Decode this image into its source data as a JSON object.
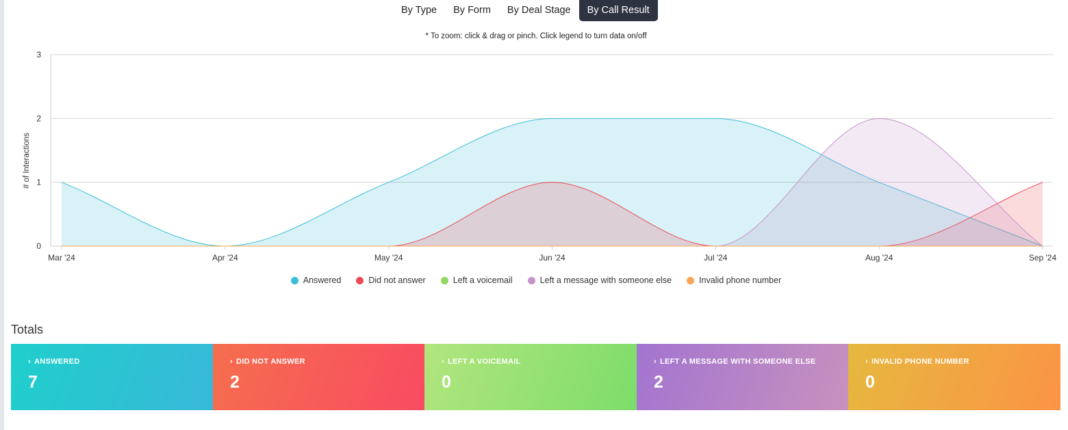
{
  "tabs": [
    {
      "label": "By Type",
      "active": false
    },
    {
      "label": "By Form",
      "active": false
    },
    {
      "label": "By Deal Stage",
      "active": false
    },
    {
      "label": "By Call Result",
      "active": true
    }
  ],
  "hint": "* To zoom: click & drag or pinch. Click legend to turn data on/off",
  "chart_data": {
    "type": "area",
    "x": [
      "Mar '24",
      "Apr '24",
      "May '24",
      "Jun '24",
      "Jul '24",
      "Aug '24",
      "Sep '24"
    ],
    "ylabel": "# of Interactions",
    "ylim": [
      0,
      3
    ],
    "yticks": [
      0,
      1,
      2,
      3
    ],
    "grid": true,
    "legend_position": "bottom",
    "series": [
      {
        "name": "Answered",
        "values": [
          1,
          0,
          1,
          2,
          2,
          1,
          0
        ],
        "color": "#3bbfd6"
      },
      {
        "name": "Did not answer",
        "values": [
          0,
          0,
          0,
          1,
          0,
          0,
          1
        ],
        "color": "#ee4a55"
      },
      {
        "name": "Left a voicemail",
        "values": [
          0,
          0,
          0,
          0,
          0,
          0,
          0
        ],
        "color": "#8fd861"
      },
      {
        "name": "Left a message with someone else",
        "values": [
          0,
          0,
          0,
          0,
          0,
          2,
          0
        ],
        "color": "#c493c9"
      },
      {
        "name": "Invalid phone number",
        "values": [
          0,
          0,
          0,
          0,
          0,
          0,
          0
        ],
        "color": "#f8a655"
      }
    ]
  },
  "totals": {
    "title": "Totals",
    "cards": [
      {
        "label": "ANSWERED",
        "value": "7",
        "from": "#1fcfcc",
        "to": "#38b8d9"
      },
      {
        "label": "DID NOT ANSWER",
        "value": "2",
        "from": "#f56e4d",
        "to": "#f94b62"
      },
      {
        "label": "LEFT A VOICEMAIL",
        "value": "0",
        "from": "#b2e57e",
        "to": "#7ddd6a"
      },
      {
        "label": "LEFT A MESSAGE WITH SOMEONE ELSE",
        "value": "2",
        "from": "#a374d0",
        "to": "#c792be"
      },
      {
        "label": "INVALID PHONE NUMBER",
        "value": "0",
        "from": "#e6b83f",
        "to": "#fb9445"
      }
    ]
  }
}
